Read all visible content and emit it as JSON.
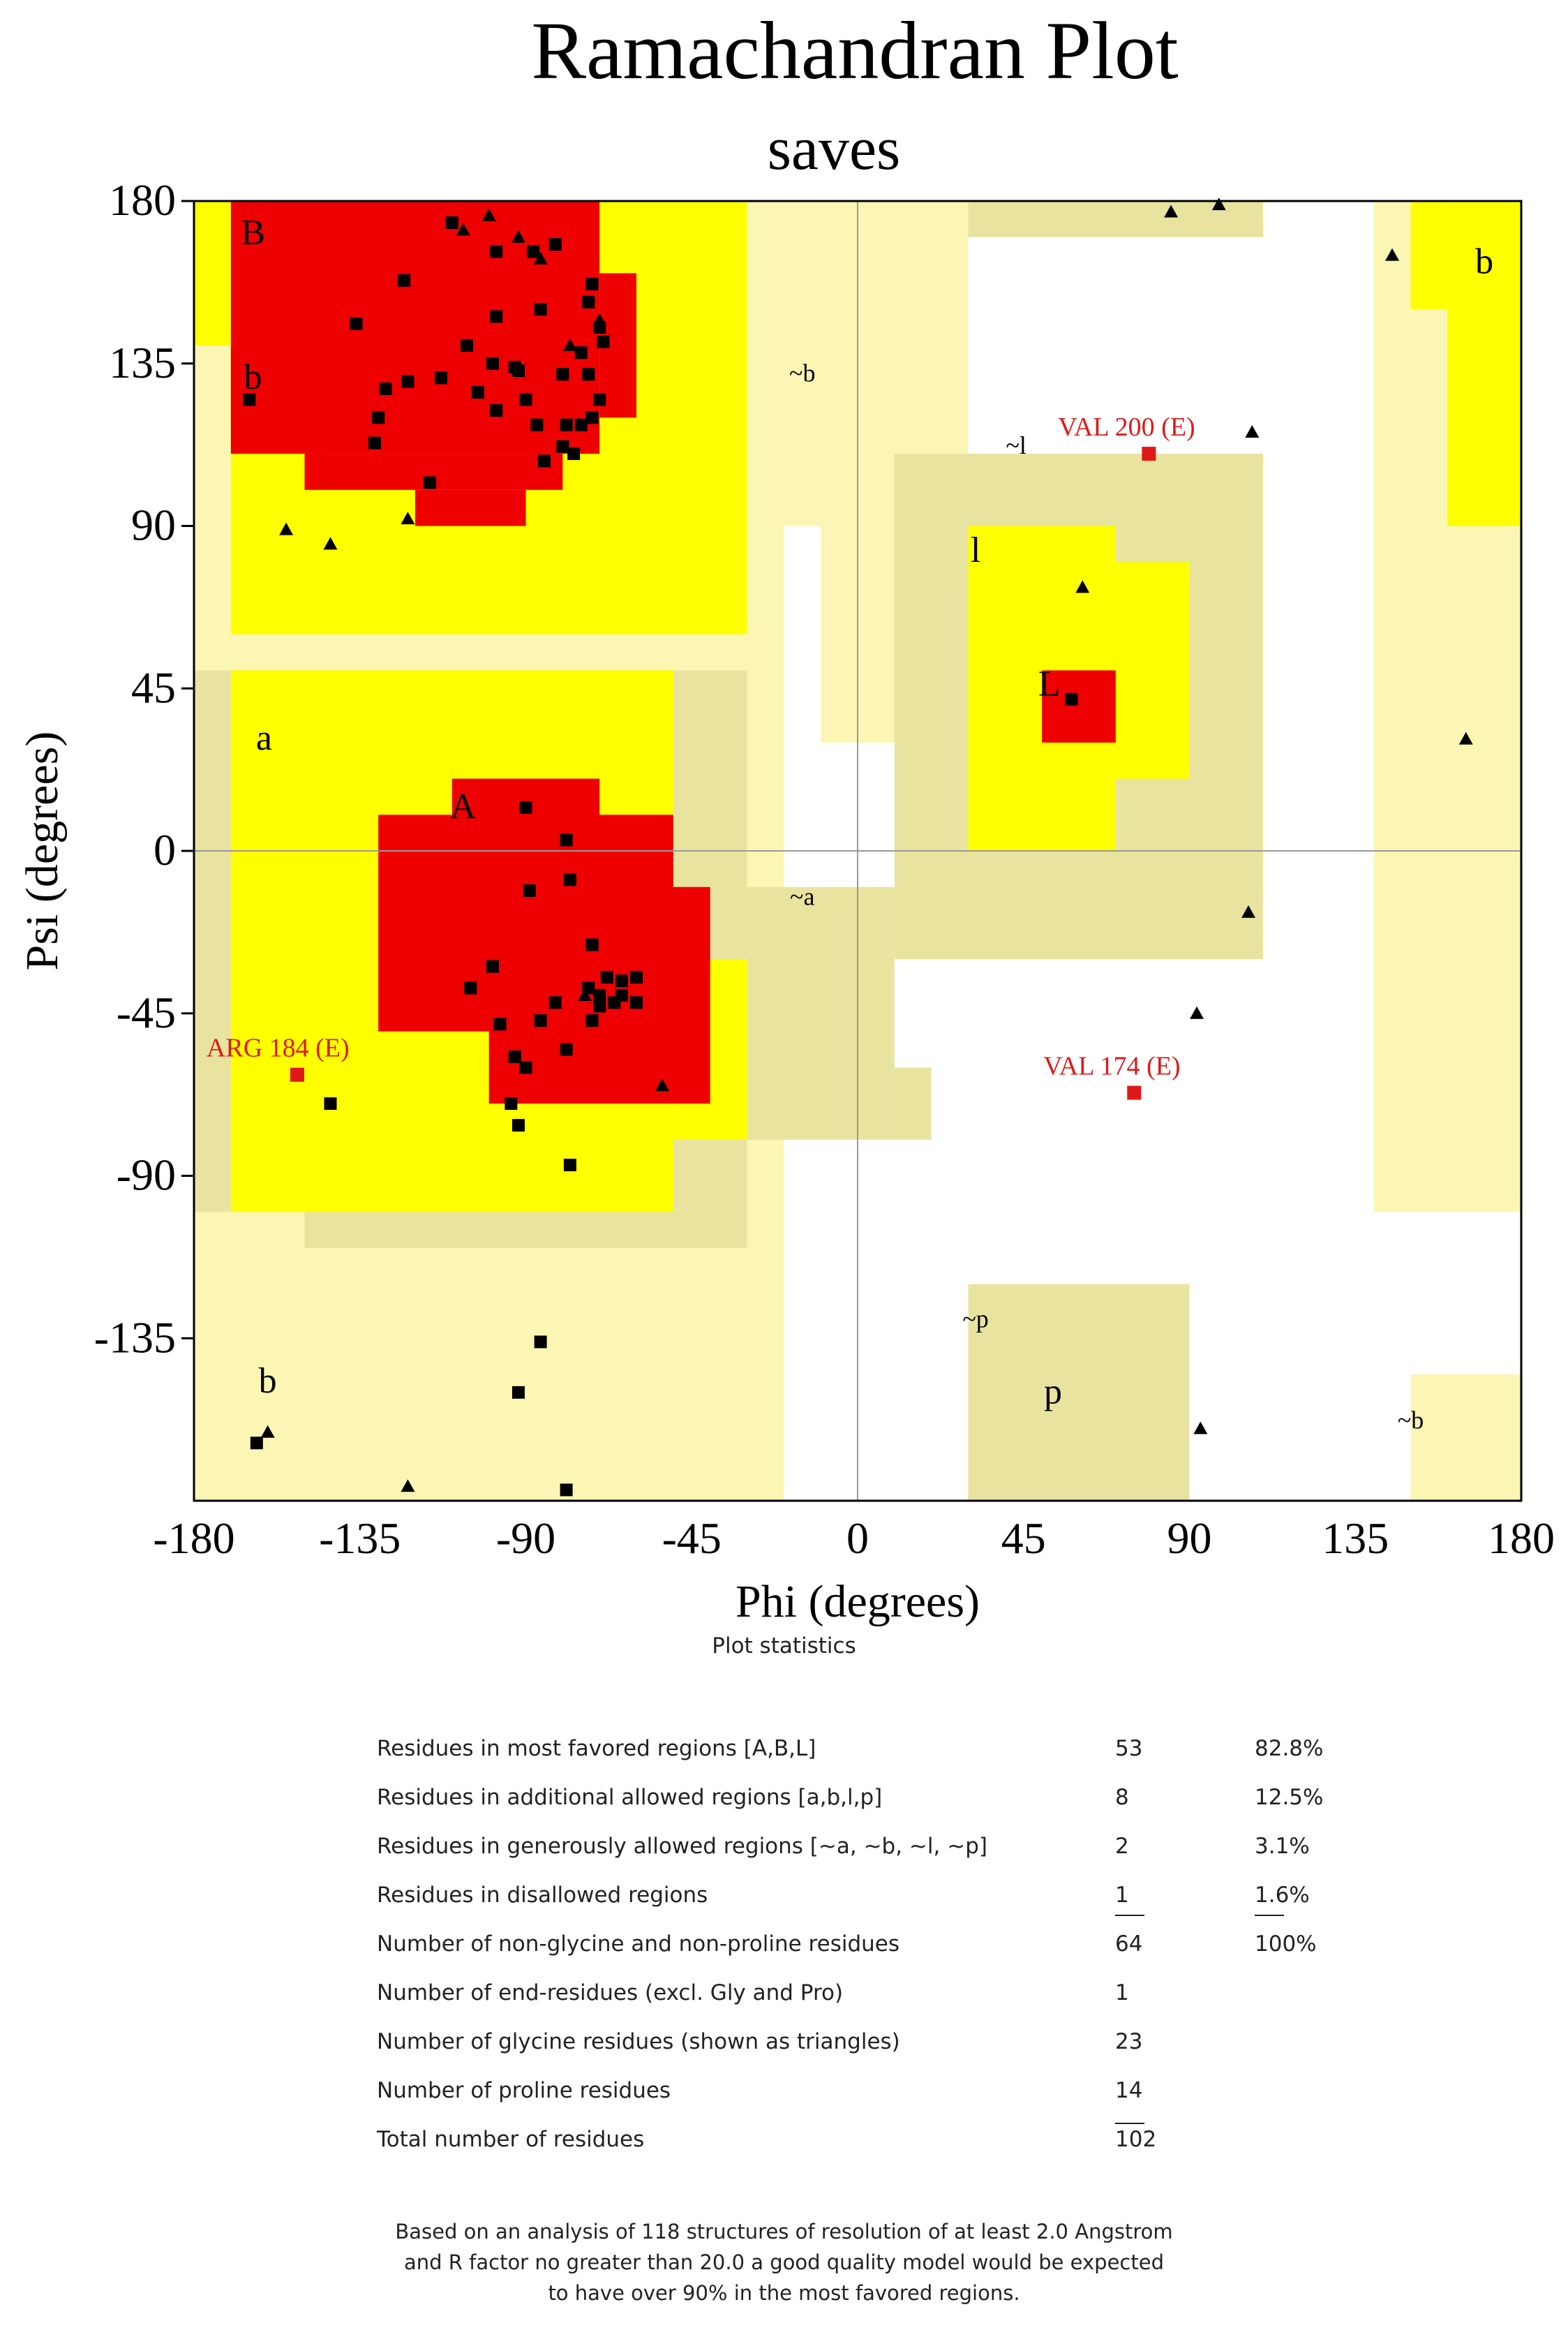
{
  "chart_data": {
    "type": "scatter",
    "title": "Ramachandran Plot",
    "subtitle": "saves",
    "xlabel": "Phi (degrees)",
    "ylabel": "Psi (degrees)",
    "xlim": [
      -180,
      180
    ],
    "ylim": [
      -180,
      180
    ],
    "xticks": [
      "-180",
      "-135",
      "-90",
      "-45",
      "0",
      "45",
      "90",
      "135",
      "180"
    ],
    "yticks": [
      "180",
      "135",
      "90",
      "45",
      "0",
      "-45",
      "-90",
      "-135"
    ],
    "colors": {
      "core": "#ee0000",
      "allowed": "#ffff00",
      "generous": "#e8e4a0",
      "generous_light": "#fbf6b4",
      "disallowed": "#ffffff",
      "residue": "#000000",
      "outlier": "#e01818"
    },
    "region_labels": [
      "B",
      "b",
      "A",
      "a",
      "L",
      "~b",
      "~a",
      "~l",
      "~p",
      "p",
      "l",
      "b",
      "~b",
      "b"
    ],
    "residues": [
      [
        -110,
        174
      ],
      [
        -123,
        158
      ],
      [
        -98,
        166
      ],
      [
        -88,
        166
      ],
      [
        -82,
        168
      ],
      [
        -86,
        150
      ],
      [
        -73,
        152
      ],
      [
        -72,
        157
      ],
      [
        -136,
        146
      ],
      [
        -98,
        148
      ],
      [
        -70,
        145
      ],
      [
        -69,
        141
      ],
      [
        -106,
        140
      ],
      [
        -113,
        131
      ],
      [
        -122,
        130
      ],
      [
        -128,
        128
      ],
      [
        -99,
        135
      ],
      [
        -93,
        134
      ],
      [
        -92,
        133
      ],
      [
        -80,
        132
      ],
      [
        -75,
        138
      ],
      [
        -73,
        132
      ],
      [
        -103,
        127
      ],
      [
        -90,
        125
      ],
      [
        -98,
        122
      ],
      [
        -165,
        125
      ],
      [
        -130,
        120
      ],
      [
        -87,
        118
      ],
      [
        -79,
        118
      ],
      [
        -75,
        118
      ],
      [
        -72,
        120
      ],
      [
        -80,
        112
      ],
      [
        -85,
        108
      ],
      [
        -77,
        110
      ],
      [
        -116,
        102
      ],
      [
        -131,
        113
      ],
      [
        -70,
        125
      ],
      [
        -90,
        12
      ],
      [
        -79,
        3
      ],
      [
        -89,
        -11
      ],
      [
        -78,
        -8
      ],
      [
        -72,
        -26
      ],
      [
        -99,
        -32
      ],
      [
        -105,
        -38
      ],
      [
        -73,
        -38
      ],
      [
        -68,
        -35
      ],
      [
        -64,
        -36
      ],
      [
        -60,
        -35
      ],
      [
        -70,
        -40
      ],
      [
        -66,
        -42
      ],
      [
        -70,
        -43
      ],
      [
        -64,
        -40
      ],
      [
        -60,
        -42
      ],
      [
        -82,
        -42
      ],
      [
        -86,
        -47
      ],
      [
        -72,
        -47
      ],
      [
        -97,
        -48
      ],
      [
        -79,
        -55
      ],
      [
        -93,
        -57
      ],
      [
        -90,
        -60
      ],
      [
        -143,
        -70
      ],
      [
        -94,
        -70
      ],
      [
        -92,
        -76
      ],
      [
        -78,
        -87
      ],
      [
        -86,
        -136
      ],
      [
        -92,
        -150
      ],
      [
        -163,
        -164
      ],
      [
        -79,
        -177
      ],
      [
        58,
        42
      ]
    ],
    "glycines": [
      [
        -107,
        172
      ],
      [
        -100,
        176
      ],
      [
        -92,
        170
      ],
      [
        -86,
        164
      ],
      [
        -70,
        147
      ],
      [
        -78,
        140
      ],
      [
        -122,
        92
      ],
      [
        -155,
        89
      ],
      [
        -143,
        85
      ],
      [
        -74,
        -40
      ],
      [
        -53,
        -65
      ],
      [
        -160,
        -161
      ],
      [
        -122,
        -176
      ],
      [
        61,
        73
      ],
      [
        85,
        177
      ],
      [
        98,
        179
      ],
      [
        145,
        165
      ],
      [
        107,
        116
      ],
      [
        165,
        31
      ],
      [
        106,
        -17
      ],
      [
        92,
        -45
      ],
      [
        93,
        -160
      ]
    ],
    "outliers": [
      {
        "label": "ARG 184 (E)",
        "phi": -152,
        "psi": -62
      },
      {
        "label": "VAL 200 (E)",
        "phi": 79,
        "psi": 110
      },
      {
        "label": "VAL 174 (E)",
        "phi": 75,
        "psi": -67
      }
    ]
  },
  "stats": {
    "caption": "Plot statistics",
    "rows": [
      {
        "label": "Residues in most favored regions [A,B,L]",
        "count": "53",
        "percent": "82.8%"
      },
      {
        "label": "Residues in additional allowed regions [a,b,l,p]",
        "count": "8",
        "percent": "12.5%"
      },
      {
        "label": "Residues in generously allowed regions [~a, ~b, ~l, ~p]",
        "count": "2",
        "percent": "3.1%"
      },
      {
        "label": "Residues in disallowed regions",
        "count": "1",
        "percent": "1.6%"
      },
      {
        "label": "Number of non-glycine and non-proline residues",
        "count": "64",
        "percent": "100%"
      },
      {
        "label": "Number of end-residues (excl. Gly and Pro)",
        "count": "1",
        "percent": ""
      },
      {
        "label": "Number of glycine residues (shown as triangles)",
        "count": "23",
        "percent": ""
      },
      {
        "label": "Number of proline residues",
        "count": "14",
        "percent": ""
      },
      {
        "label": "Total number of residues",
        "count": "102",
        "percent": ""
      }
    ]
  },
  "footnote": {
    "lines": [
      "Based on an analysis of 118 structures of resolution of at least 2.0 Angstrom",
      "and R factor no greater than 20.0 a good quality model would be expected",
      "to have over 90% in the most favored regions."
    ]
  }
}
